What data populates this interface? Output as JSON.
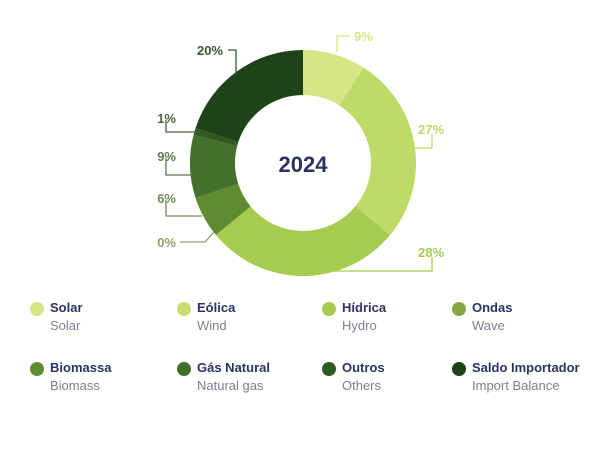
{
  "chart_data": {
    "type": "pie",
    "variant": "donut",
    "title": "2024",
    "center_label": "2024",
    "start_angle_deg": 0,
    "direction": "clockwise",
    "categories": [
      "Solar",
      "Eólica",
      "Hídrica",
      "Ondas",
      "Biomassa",
      "Gás Natural",
      "Outros",
      "Saldo Importador"
    ],
    "categories_en": [
      "Solar",
      "Wind",
      "Hydro",
      "Wave",
      "Biomass",
      "Natural gas",
      "Others",
      "Import Balance"
    ],
    "values": [
      9,
      27,
      28,
      0,
      6,
      9,
      1,
      20
    ],
    "unit": "%",
    "labels": [
      "9%",
      "27%",
      "28%",
      "0%",
      "6%",
      "9%",
      "1%",
      "20%"
    ],
    "colors": [
      "#d6e586",
      "#bddb67",
      "#a6cc4f",
      "#7da33d",
      "#5f8b31",
      "#43702a",
      "#33591f",
      "#1f4319"
    ],
    "legend_position": "bottom",
    "grid": false
  },
  "center": {
    "label": "2024",
    "color": "#2b3363"
  },
  "legend": [
    {
      "pt": "Solar",
      "en": "Solar",
      "color": "#d6e586"
    },
    {
      "pt": "Eólica",
      "en": "Wind",
      "color": "#c6df72"
    },
    {
      "pt": "Hídrica",
      "en": "Hydro",
      "color": "#a6cc4f"
    },
    {
      "pt": "Ondas",
      "en": "Wave",
      "color": "#84a643"
    },
    {
      "pt": "Biomassa",
      "en": "Biomass",
      "color": "#5f8b31"
    },
    {
      "pt": "Gás Natural",
      "en": "Natural gas",
      "color": "#43702a"
    },
    {
      "pt": "Outros",
      "en": "Others",
      "color": "#2f5a22"
    },
    {
      "pt": "Saldo Importador",
      "en": "Import Balance",
      "color": "#1f4319"
    }
  ]
}
